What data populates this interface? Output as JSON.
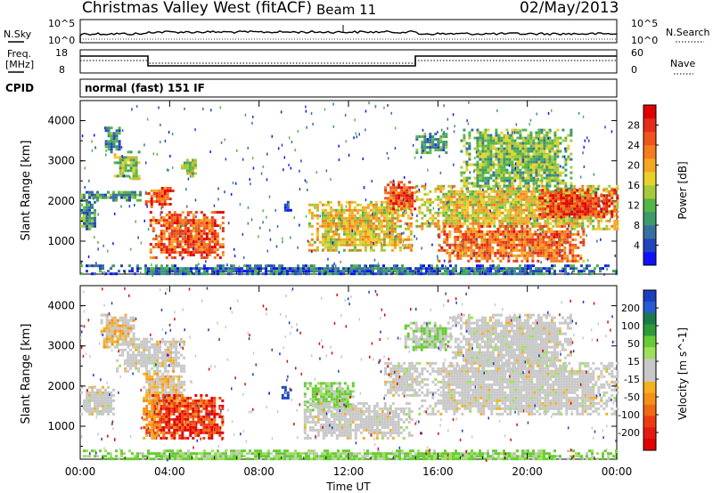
{
  "header": {
    "title": "Christmas Valley West (fitACF)",
    "beam": "Beam 11",
    "date": "02/May/2013"
  },
  "panels": {
    "nsky_label": "N.Sky",
    "nsearch_label": "N.Search",
    "freq_label_1": "Freq.",
    "freq_label_2": "[MHz]",
    "nave_label": "Nave",
    "cpid_label": "CPID",
    "cpid_text": "normal (fast) 151 IF",
    "noise_left_ticks": [
      "10^5",
      "10^0"
    ],
    "noise_right_ticks": [
      "10^5",
      "10^0"
    ],
    "freq_ticks": [
      "18",
      "8"
    ],
    "nave_ticks": [
      "60",
      "0"
    ]
  },
  "chart_data": [
    {
      "type": "heatmap",
      "title": "Power",
      "xlabel": "Time UT",
      "ylabel": "Slant Range [km]",
      "x_ticks": [
        "00:00",
        "04:00",
        "08:00",
        "12:00",
        "16:00",
        "20:00",
        "00:00"
      ],
      "y_ticks": [
        "1000",
        "2000",
        "3000",
        "4000"
      ],
      "xlim": [
        0,
        24
      ],
      "ylim": [
        180,
        4500
      ],
      "colorbar": {
        "label": "Power [dB]",
        "ticks": [
          "4",
          "8",
          "12",
          "16",
          "20",
          "24",
          "28"
        ],
        "range": [
          0,
          32
        ],
        "colors": [
          "#1010ff",
          "#2244bb",
          "#3a6fa0",
          "#3b9b6b",
          "#55b646",
          "#a6c93c",
          "#e8d22a",
          "#f5a623",
          "#f57c1f",
          "#f0541c",
          "#e52e1c",
          "#e00000"
        ]
      },
      "regions": [
        {
          "t0": 1.1,
          "t1": 1.7,
          "r0": 3200,
          "r1": 3850,
          "level": 0.25
        },
        {
          "t0": 1.5,
          "t1": 2.6,
          "r0": 2550,
          "r1": 3250,
          "level": 0.45
        },
        {
          "t0": 2.9,
          "t1": 4.1,
          "r0": 1850,
          "r1": 2350,
          "level": 0.8
        },
        {
          "t0": 3.1,
          "t1": 6.4,
          "r0": 600,
          "r1": 1750,
          "level": 0.8
        },
        {
          "t0": 0.0,
          "t1": 2.8,
          "r0": 2050,
          "r1": 2250,
          "level": 0.3
        },
        {
          "t0": 0.0,
          "t1": 0.7,
          "r0": 1300,
          "r1": 2000,
          "level": 0.3
        },
        {
          "t0": 4.5,
          "t1": 5.1,
          "r0": 2650,
          "r1": 3050,
          "level": 0.45
        },
        {
          "t0": 9.0,
          "t1": 9.4,
          "r0": 1700,
          "r1": 2000,
          "level": 0.1
        },
        {
          "t0": 10.2,
          "t1": 14.8,
          "r0": 750,
          "r1": 2000,
          "level": 0.55
        },
        {
          "t0": 13.6,
          "t1": 15.0,
          "r0": 1800,
          "r1": 2500,
          "level": 0.8
        },
        {
          "t0": 15.0,
          "t1": 16.4,
          "r0": 3200,
          "r1": 3700,
          "level": 0.3
        },
        {
          "t0": 15.0,
          "t1": 24.0,
          "r0": 1300,
          "r1": 2400,
          "level": 0.55
        },
        {
          "t0": 16.0,
          "t1": 22.5,
          "r0": 500,
          "r1": 1400,
          "level": 0.75
        },
        {
          "t0": 17.0,
          "t1": 22.0,
          "r0": 2300,
          "r1": 3800,
          "level": 0.4
        },
        {
          "t0": 20.5,
          "t1": 24.0,
          "r0": 1600,
          "r1": 2300,
          "level": 0.85
        },
        {
          "t0": 0.0,
          "t1": 24.0,
          "r0": 180,
          "r1": 420,
          "level": 0.2
        }
      ]
    },
    {
      "type": "heatmap",
      "title": "Velocity",
      "xlabel": "Time UT",
      "ylabel": "Slant Range [km]",
      "x_ticks": [
        "00:00",
        "04:00",
        "08:00",
        "12:00",
        "16:00",
        "20:00",
        "00:00"
      ],
      "y_ticks": [
        "1000",
        "2000",
        "3000",
        "4000"
      ],
      "xlim": [
        0,
        24
      ],
      "ylim": [
        180,
        4500
      ],
      "colorbar": {
        "label": "Velocity [m s^-1]",
        "ticks": [
          "200",
          "100",
          "50",
          "15",
          "-15",
          "-50",
          "-100",
          "-200"
        ],
        "colors": [
          "#1a3fbf",
          "#2a5bd0",
          "#1a7a4a",
          "#2e9a3a",
          "#66cc33",
          "#9ee05a",
          "#c8c8c8",
          "#c8c8c8",
          "#f5b020",
          "#f5901a",
          "#f06a14",
          "#ee3c10",
          "#e51a10",
          "#e00000"
        ]
      },
      "regions": [
        {
          "t0": 0.9,
          "t1": 2.4,
          "r0": 3000,
          "r1": 3800,
          "cls": "orange-gray"
        },
        {
          "t0": 1.6,
          "t1": 4.6,
          "r0": 2400,
          "r1": 3200,
          "cls": "gray"
        },
        {
          "t0": 2.8,
          "t1": 4.6,
          "r0": 1600,
          "r1": 2400,
          "cls": "orange-gray"
        },
        {
          "t0": 3.2,
          "t1": 6.4,
          "r0": 700,
          "r1": 1800,
          "cls": "red"
        },
        {
          "t0": 2.8,
          "t1": 3.6,
          "r0": 700,
          "r1": 1800,
          "cls": "orange"
        },
        {
          "t0": 0.0,
          "t1": 1.5,
          "r0": 1300,
          "r1": 2000,
          "cls": "gray"
        },
        {
          "t0": 9.0,
          "t1": 9.4,
          "r0": 1700,
          "r1": 2000,
          "cls": "blue"
        },
        {
          "t0": 10.0,
          "t1": 12.2,
          "r0": 1400,
          "r1": 2100,
          "cls": "green"
        },
        {
          "t0": 10.0,
          "t1": 14.8,
          "r0": 700,
          "r1": 1600,
          "cls": "gray"
        },
        {
          "t0": 13.6,
          "t1": 15.0,
          "r0": 1800,
          "r1": 2600,
          "cls": "gray"
        },
        {
          "t0": 14.5,
          "t1": 16.6,
          "r0": 2900,
          "r1": 3600,
          "cls": "green-gray"
        },
        {
          "t0": 15.0,
          "t1": 24.0,
          "r0": 1300,
          "r1": 2600,
          "cls": "gray"
        },
        {
          "t0": 16.5,
          "t1": 22.0,
          "r0": 2400,
          "r1": 3800,
          "cls": "gray"
        },
        {
          "t0": 0.0,
          "t1": 24.0,
          "r0": 180,
          "r1": 420,
          "cls": "green"
        }
      ]
    }
  ]
}
